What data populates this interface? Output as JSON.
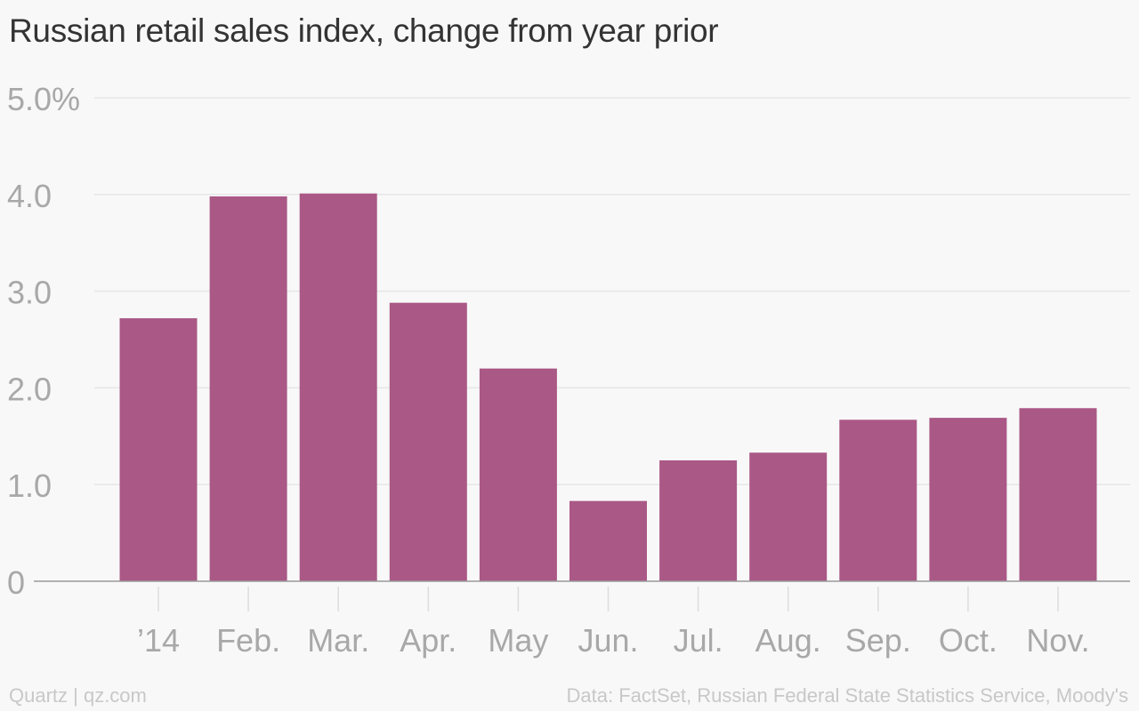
{
  "chart_data": {
    "type": "bar",
    "title": "Russian retail sales index, change from year prior",
    "categories": [
      "’14",
      "Feb.",
      "Mar.",
      "Apr.",
      "May",
      "Jun.",
      "Jul.",
      "Aug.",
      "Sep.",
      "Oct.",
      "Nov."
    ],
    "values": [
      2.72,
      3.98,
      4.01,
      2.88,
      2.2,
      0.83,
      1.25,
      1.33,
      1.67,
      1.69,
      1.79
    ],
    "yticks": [
      {
        "value": 0,
        "label": "0"
      },
      {
        "value": 1,
        "label": "1.0"
      },
      {
        "value": 2,
        "label": "2.0"
      },
      {
        "value": 3,
        "label": "3.0"
      },
      {
        "value": 4,
        "label": "4.0"
      },
      {
        "value": 5,
        "label": "5.0%"
      }
    ],
    "xlabel": "",
    "ylabel": "",
    "ylim": [
      0,
      5
    ],
    "grid": true,
    "legend": "none",
    "colors": {
      "bar": "#aa5886",
      "grid": "#e6e6e6",
      "axis": "#999999",
      "tick_label": "#a8a8a8",
      "title": "#333333",
      "background": "#f8f8f8"
    }
  },
  "footer": {
    "source_left": "Quartz | qz.com",
    "source_right": "Data: FactSet, Russian Federal State Statistics Service, Moody's"
  }
}
